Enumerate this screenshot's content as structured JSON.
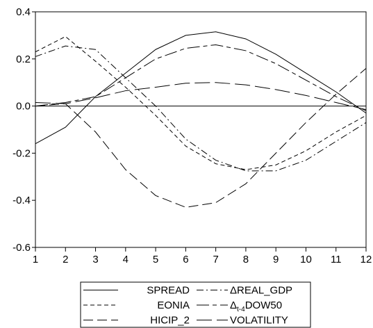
{
  "chart_data": {
    "type": "line",
    "x": [
      1,
      2,
      3,
      4,
      5,
      6,
      7,
      8,
      9,
      10,
      11,
      12
    ],
    "ylim": [
      -0.6,
      0.4
    ],
    "y_ticks": [
      "0.4",
      "0.2",
      "0.0",
      "-0.2",
      "-0.4",
      "-0.6"
    ],
    "y_tick_values": [
      0.4,
      0.2,
      0.0,
      -0.2,
      -0.4,
      -0.6
    ],
    "x_ticks": [
      "1",
      "2",
      "3",
      "4",
      "5",
      "6",
      "7",
      "8",
      "9",
      "10",
      "11",
      "12"
    ],
    "grid": false,
    "zero_line": true,
    "legend_position": "bottom",
    "series": [
      {
        "name": "SPREAD",
        "dash": "solid",
        "values": [
          -0.16,
          -0.09,
          0.04,
          0.14,
          0.24,
          0.3,
          0.315,
          0.285,
          0.22,
          0.14,
          0.06,
          -0.03
        ]
      },
      {
        "name": "EONIA",
        "dash": "short-dash",
        "values": [
          0.23,
          0.295,
          0.19,
          0.08,
          -0.04,
          -0.17,
          -0.245,
          -0.27,
          -0.25,
          -0.19,
          -0.11,
          -0.04
        ]
      },
      {
        "name": "HICIP_2",
        "dash": "long-dash",
        "values": [
          0.0,
          0.01,
          -0.11,
          -0.27,
          -0.38,
          -0.43,
          -0.41,
          -0.33,
          -0.2,
          -0.07,
          0.05,
          0.16
        ]
      },
      {
        "name": "ΔREAL_GDP",
        "dash": "dash-dot",
        "values": [
          0.21,
          0.255,
          0.24,
          0.12,
          0.0,
          -0.14,
          -0.23,
          -0.275,
          -0.275,
          -0.23,
          -0.15,
          -0.07
        ]
      },
      {
        "name": "Δ",
        "name_sub": "t-4",
        "name_tail": "DOW50",
        "dash": "long-short",
        "values": [
          0.0,
          0.015,
          0.04,
          0.12,
          0.2,
          0.245,
          0.26,
          0.235,
          0.18,
          0.11,
          0.04,
          -0.02
        ]
      },
      {
        "name": "VOLATILITY",
        "dash": "long",
        "values": [
          0.015,
          0.01,
          0.035,
          0.065,
          0.08,
          0.097,
          0.1,
          0.09,
          0.07,
          0.045,
          0.015,
          -0.015
        ]
      }
    ]
  }
}
